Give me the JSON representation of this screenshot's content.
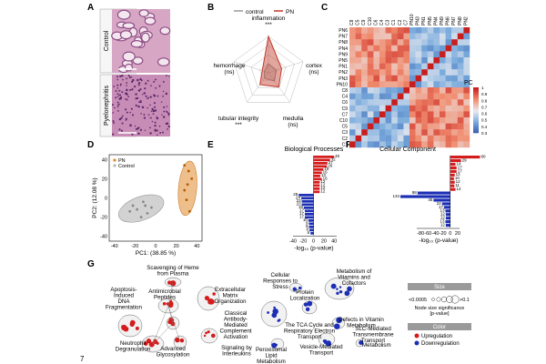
{
  "page_number": "7",
  "panels": {
    "A": {
      "letter": "A",
      "row_labels": [
        "Control",
        "Pyelonephritis"
      ],
      "colors": {
        "control_bg": "#d7a6c4",
        "pyelo_bg": "#c88db6",
        "tubule": "#8f4f86",
        "lumen": "#f4e6ef",
        "nuclei": "#5b2a6b"
      }
    },
    "B": {
      "letter": "B",
      "legend": [
        {
          "name": "control",
          "color": "#999999"
        },
        {
          "name": "PN",
          "color": "#c0392b"
        }
      ],
      "axes": [
        {
          "label": "inflammation",
          "stars": "***",
          "pn": 1.0,
          "control": 0.25
        },
        {
          "label": "cortex",
          "sublabel": "(ns)",
          "pn": 0.38,
          "control": 0.22
        },
        {
          "label": "medulla",
          "sublabel": "(ns)",
          "pn": 0.48,
          "control": 0.28
        },
        {
          "label": "tubular integrity",
          "stars": "***",
          "pn": 0.4,
          "control": 0.18
        },
        {
          "label": "hemorrhage",
          "sublabel": "(ns)",
          "pn": 0.18,
          "control": 0.12
        }
      ]
    },
    "C": {
      "letter": "C",
      "col_labels": [
        "C8",
        "C5",
        "C9",
        "C10",
        "C6",
        "C4",
        "C3",
        "C1",
        "C2",
        "C7",
        "PN10",
        "PN3",
        "PN1",
        "PN5",
        "PN4",
        "PN9",
        "PN6",
        "PN7",
        "PN8",
        "PN2"
      ],
      "row_labels": [
        "PN6",
        "PN7",
        "PN8",
        "PN4",
        "PN9",
        "PN5",
        "PN1",
        "PN2",
        "PN3",
        "PN10",
        "C8",
        "C4",
        "C6",
        "C9",
        "C7",
        "C10",
        "C5",
        "C3",
        "C2",
        "C1"
      ],
      "colorbar_title": "PC",
      "colorbar_ticks": [
        "1",
        "0.9",
        "0.8",
        "0.7",
        "0.6",
        "0.5",
        "0.4",
        "0.3"
      ],
      "colorbar_min": 0.3,
      "colorbar_max": 1.0
    },
    "D": {
      "letter": "D",
      "legend": [
        {
          "name": "PN",
          "color": "#e08a2c"
        },
        {
          "name": "Control",
          "color": "#b5b5b5"
        }
      ],
      "xlabel": "PC1: (38.85 %)",
      "ylabel": "PC2: (12.08 %)",
      "x_ticks": [
        "-40",
        "-20",
        "0",
        "20",
        "40"
      ],
      "y_ticks": [
        "-40",
        "-20",
        "0",
        "20",
        "40"
      ],
      "points_pn": [
        [
          28,
          8
        ],
        [
          30,
          -2
        ],
        [
          32,
          28
        ],
        [
          35,
          20
        ],
        [
          33,
          -14
        ],
        [
          28,
          34
        ],
        [
          31,
          14
        ]
      ],
      "points_control": [
        [
          -22,
          -8
        ],
        [
          -18,
          -12
        ],
        [
          -12,
          -4
        ],
        [
          -8,
          -16
        ],
        [
          -14,
          -20
        ],
        [
          -4,
          -10
        ],
        [
          -25,
          -14
        ],
        [
          -10,
          -8
        ]
      ]
    },
    "E": {
      "letter": "E",
      "title": "Biological Processes",
      "xlabel": "-log₁₀ (p-value)",
      "x_ticks": [
        "-40",
        "-20",
        "0",
        "20",
        "40"
      ],
      "up_values": [
        40,
        32,
        27,
        26,
        19,
        16,
        13,
        16,
        12,
        12,
        12,
        12
      ],
      "down_values": [
        29,
        24,
        23,
        23,
        19,
        17,
        17,
        17,
        10,
        9,
        9,
        8,
        6
      ]
    },
    "F": {
      "letter": "F",
      "title": "Cellular Component",
      "xlabel": "-log₁₀ (p-value)",
      "x_ticks": [
        "-80",
        "-60",
        "-40",
        "-20",
        "0",
        "20"
      ],
      "up_values": [
        80,
        29,
        14,
        17,
        17,
        12,
        10,
        12,
        11,
        14
      ],
      "down_values": [
        88,
        134,
        45,
        22,
        17,
        13,
        12,
        12,
        13,
        12
      ]
    },
    "G": {
      "letter": "G",
      "cluster_labels": [
        "Scavenging of Heme\nfrom Plasma",
        "Apoptosis-\nInduced\nDNA\nFragmentation",
        "Antimicrobial\nPeptides",
        "Extracellular\nMatrix\nOrganization",
        "Classical\nAntibody-\nMediated\nComplement\nActivation",
        "Neutrophil\nDegranulation",
        "Advanced\nGlycosylation",
        "Signaling by\nInterleukins",
        "Cellular\nResponses to\nStress",
        "Protein\nLocalization",
        "The TCA Cycle and\nRespiratory Electron\nTransport",
        "Peroxisomal\nLipid\nMetabolism",
        "Metabolism of\nVitamins and\nCofactors",
        "Defects in Vitamin\nMetabolism",
        "SLC-Mediated\nTransmembrane\nTransport",
        "Vesicle-Mediated\nTransport",
        "Metabolism"
      ],
      "legend": {
        "size_title": "Size",
        "size_min": "<0.0005",
        "size_max": ">0.1",
        "size_caption": "Node size significance\n[p-value]",
        "color_title": "Color",
        "upregulation": "Upregulation",
        "downregulation": "Downregulation",
        "up_color": "#d41c1c",
        "down_color": "#1c2fb4"
      }
    }
  }
}
